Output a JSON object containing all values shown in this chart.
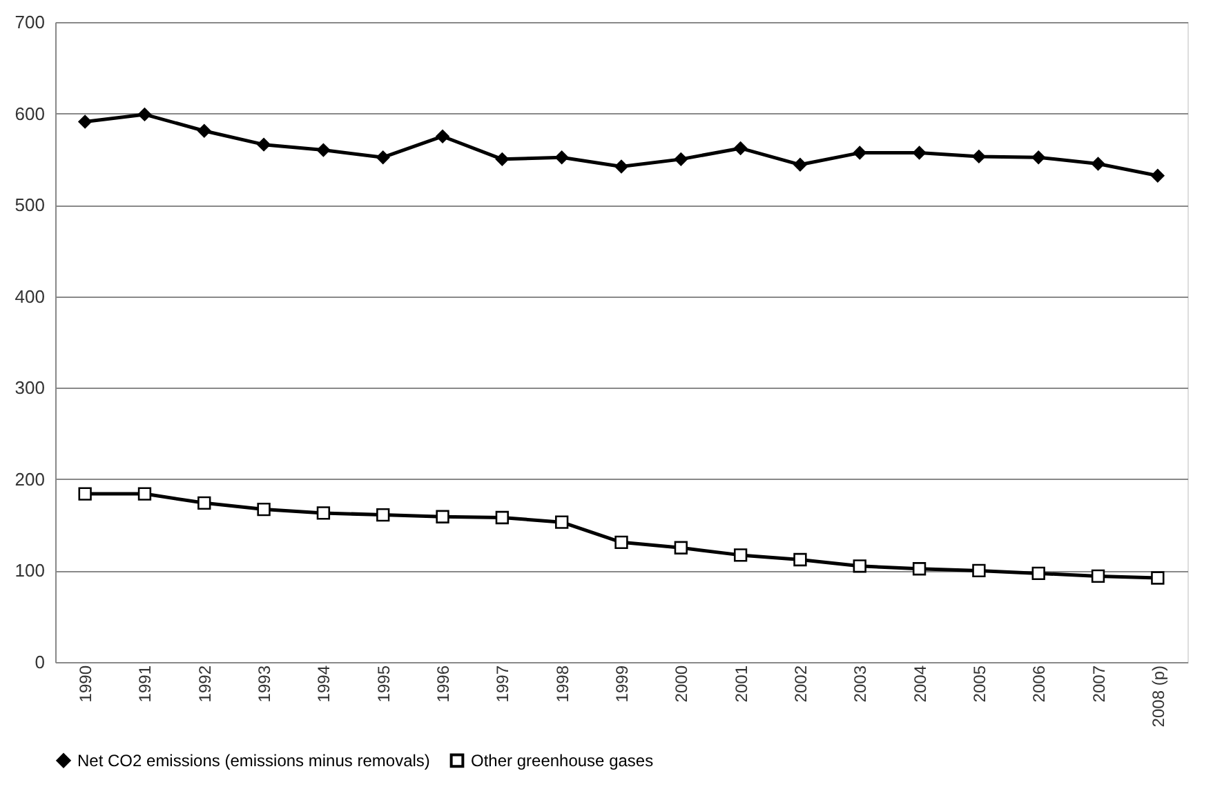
{
  "chart_data": {
    "type": "line",
    "categories": [
      "1990",
      "1991",
      "1992",
      "1993",
      "1994",
      "1995",
      "1996",
      "1997",
      "1998",
      "1999",
      "2000",
      "2001",
      "2002",
      "2003",
      "2004",
      "2005",
      "2006",
      "2007",
      "2008 (p)"
    ],
    "series": [
      {
        "name": "Net CO2 emissions (emissions minus removals)",
        "color": "#000000",
        "marker": "diamond",
        "values": [
          591,
          599,
          581,
          566,
          560,
          552,
          575,
          550,
          552,
          542,
          550,
          562,
          544,
          557,
          557,
          553,
          552,
          545,
          532
        ]
      },
      {
        "name": "Other greenhouse gases",
        "color": "#000000",
        "marker": "square",
        "values": [
          184,
          184,
          174,
          167,
          163,
          161,
          159,
          158,
          153,
          131,
          125,
          117,
          112,
          105,
          102,
          100,
          97,
          94,
          92
        ]
      }
    ],
    "ylim": [
      0,
      700
    ],
    "yticks": [
      0,
      100,
      200,
      300,
      400,
      500,
      600,
      700
    ],
    "grid": "y",
    "legend": "bottom",
    "line_style": "solid"
  }
}
